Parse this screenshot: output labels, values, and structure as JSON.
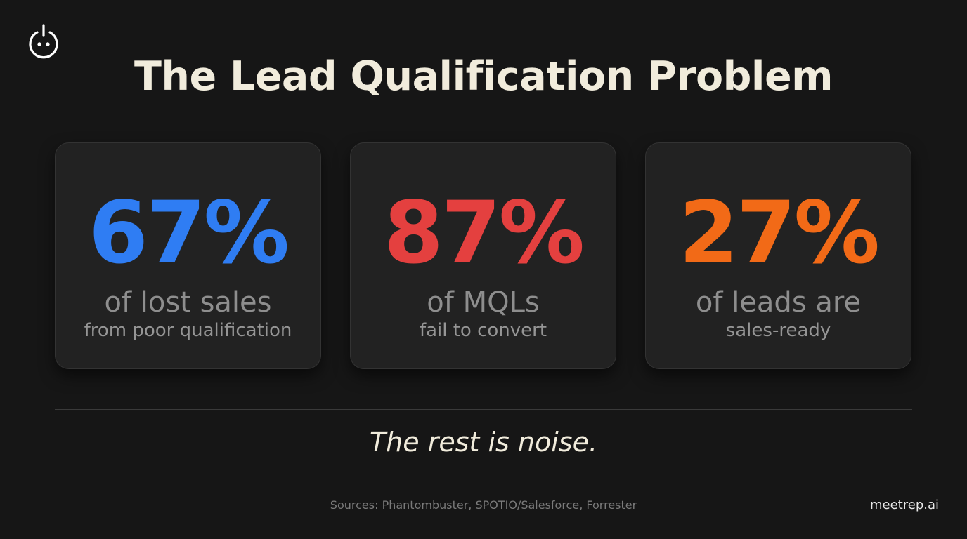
{
  "title": "The Lead Qualification Problem",
  "colors": {
    "blue": "#2f7df3",
    "red": "#e4403f",
    "orange": "#f26a17",
    "cream": "#f1ecdc",
    "background": "#161616",
    "card": "#222222"
  },
  "stats": [
    {
      "value": "67%",
      "line1": "of lost sales",
      "line2": "from poor qualification",
      "color": "#2f7df3"
    },
    {
      "value": "87%",
      "line1": "of MQLs",
      "line2": "fail to convert",
      "color": "#e4403f"
    },
    {
      "value": "27%",
      "line1": "of leads are",
      "line2": "sales-ready",
      "color": "#f26a17"
    }
  ],
  "tagline": "The rest is noise.",
  "sources": "Sources: Phantombuster, SPOTIO/Salesforce, Forrester",
  "brand": "meetrep.ai",
  "logo_icon": "power-face-icon"
}
